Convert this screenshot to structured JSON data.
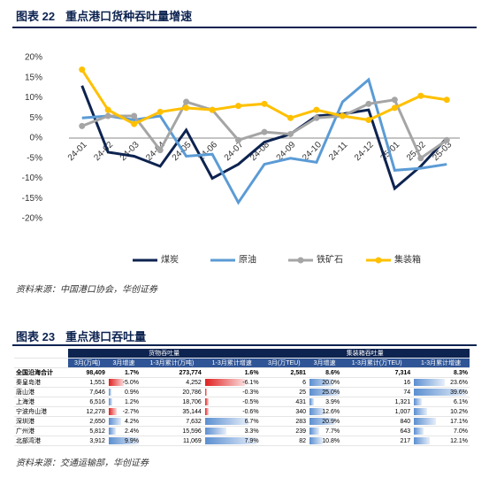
{
  "figure22": {
    "label": "图表 22",
    "title": "重点港口货种吞吐量增速",
    "source": "资料来源：中国港口协会，华创证券"
  },
  "chart_data": {
    "type": "line",
    "categories": [
      "24-01",
      "24-02",
      "24-03",
      "24-04",
      "24-05",
      "24-06",
      "24-07",
      "24-08",
      "24-09",
      "24-10",
      "24-11",
      "24-12",
      "25-01",
      "25-02",
      "25-03"
    ],
    "series": [
      {
        "name": "煤炭",
        "color": "#0d2350",
        "marker": false,
        "values": [
          13,
          -3.5,
          -4.5,
          -7,
          2,
          -10,
          -6.5,
          -1,
          1,
          5.5,
          6,
          7,
          -12.5,
          -7,
          0
        ]
      },
      {
        "name": "原油",
        "color": "#5b9bd5",
        "marker": false,
        "values": [
          5,
          5.5,
          4.5,
          5.5,
          -4.5,
          -4,
          -16,
          -6.5,
          -5,
          -6,
          9,
          14.5,
          -8,
          -7.5,
          -6.5
        ]
      },
      {
        "name": "铁矿石",
        "color": "#a5a5a5",
        "marker": true,
        "values": [
          3,
          5.5,
          5.5,
          -3,
          9,
          7,
          -0.5,
          1.5,
          1,
          5,
          5.5,
          8.5,
          9.5,
          -5,
          -0.5
        ]
      },
      {
        "name": "集装箱",
        "color": "#ffc000",
        "marker": true,
        "values": [
          17,
          7,
          3.5,
          6.5,
          7.5,
          7,
          8,
          8.5,
          5,
          7,
          5.5,
          4.5,
          7.5,
          10.5,
          9.5
        ]
      }
    ],
    "ylim": [
      -20,
      20
    ],
    "yticks": [
      {
        "value": -20,
        "label": "-20%"
      },
      {
        "value": -15,
        "label": "-15%"
      },
      {
        "value": -10,
        "label": "-10%"
      },
      {
        "value": -5,
        "label": "-5%"
      },
      {
        "value": 0,
        "label": "0%"
      },
      {
        "value": 5,
        "label": "5%"
      },
      {
        "value": 10,
        "label": "10%"
      },
      {
        "value": 15,
        "label": "15%"
      },
      {
        "value": 20,
        "label": "20%"
      }
    ],
    "grid": false,
    "legend": "bottom"
  },
  "figure23": {
    "label": "图表 23",
    "title": "重点港口吞吐量",
    "source": "资料来源：交通运输部，华创证券"
  },
  "table": {
    "groups": [
      "货物吞吐量",
      "集装箱吞吐量"
    ],
    "columns": [
      "3月(万吨)",
      "3月增速",
      "1-3月累计(万吨)",
      "1-3月累计增速",
      "3月(万TEU)",
      "3月增速",
      "1-3月累计(万TEU)",
      "1-3月累计增速"
    ],
    "rows": [
      [
        "全国沿海合计",
        "98,409",
        "1.7%",
        "273,774",
        "1.6%",
        "2,581",
        "8.6%",
        "7,314",
        "8.3%"
      ],
      [
        "秦皇岛港",
        "1,551",
        "-5.0%",
        "4,252",
        "-6.1%",
        "6",
        "20.0%",
        "16",
        "23.6%"
      ],
      [
        "唐山港",
        "7,646",
        "0.9%",
        "20,786",
        "-0.3%",
        "25",
        "25.0%",
        "74",
        "39.6%"
      ],
      [
        "上海港",
        "6,516",
        "1.2%",
        "18,706",
        "-0.5%",
        "431",
        "3.9%",
        "1,321",
        "6.1%"
      ],
      [
        "宁波舟山港",
        "12,278",
        "-2.7%",
        "35,144",
        "-0.6%",
        "340",
        "12.6%",
        "1,007",
        "10.2%"
      ],
      [
        "深圳港",
        "2,650",
        "4.2%",
        "7,632",
        "6.7%",
        "283",
        "20.9%",
        "840",
        "17.1%"
      ],
      [
        "广州港",
        "5,812",
        "2.4%",
        "15,596",
        "3.3%",
        "239",
        "7.7%",
        "643",
        "7.0%"
      ],
      [
        "北部湾港",
        "3,912",
        "9.9%",
        "11,069",
        "7.9%",
        "82",
        "10.8%",
        "217",
        "12.1%"
      ]
    ]
  }
}
